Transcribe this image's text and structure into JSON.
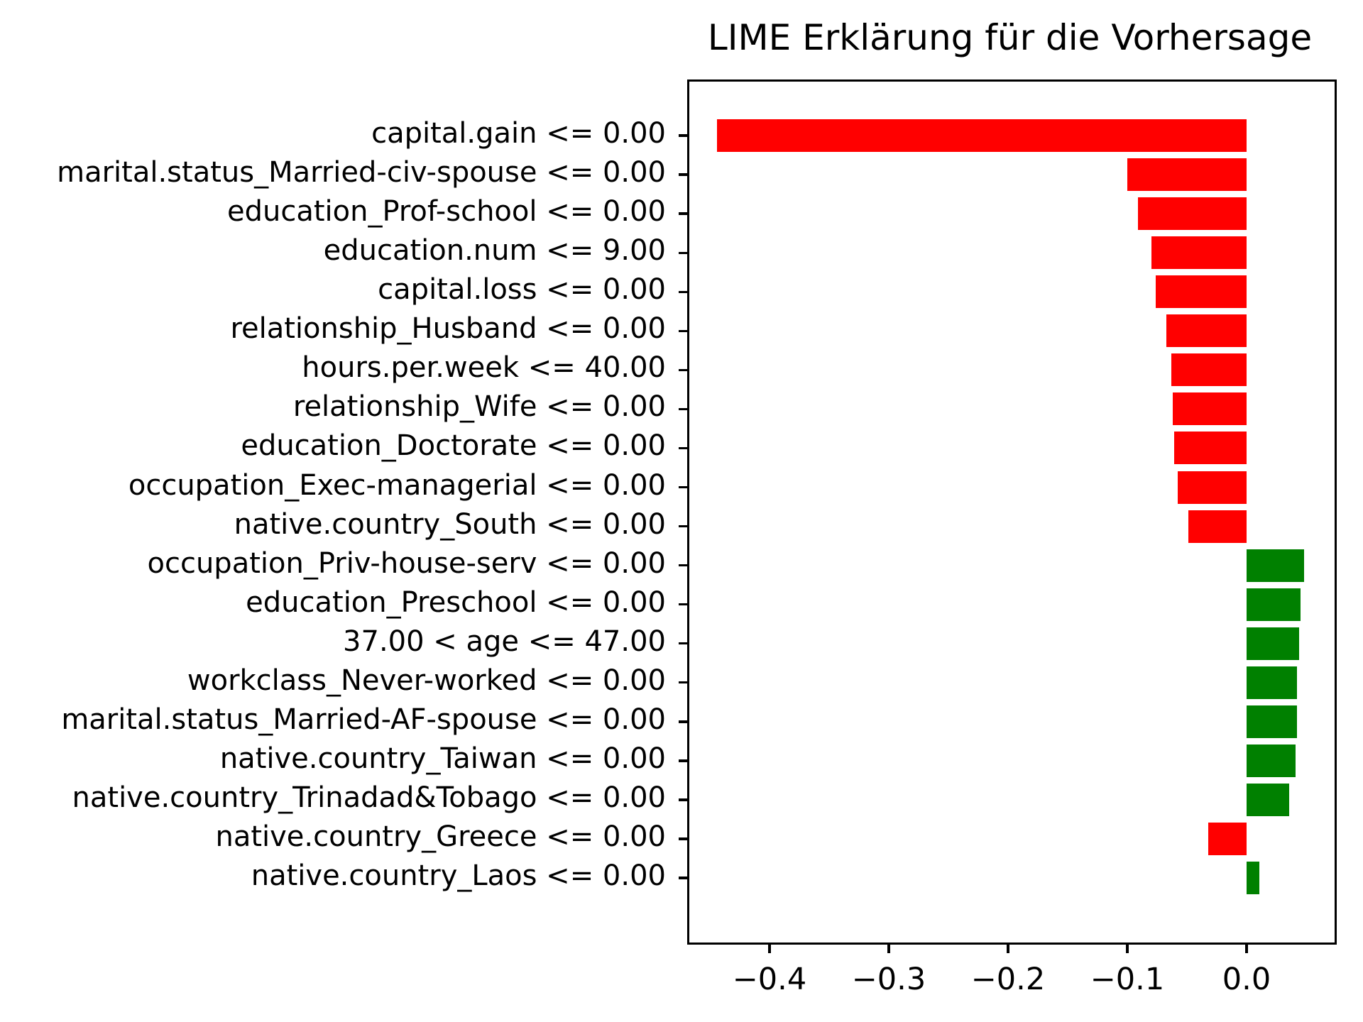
{
  "chart_data": {
    "type": "bar",
    "orientation": "horizontal",
    "title": "LIME Erklärung für die Vorhersage",
    "categories": [
      "capital.gain <= 0.00",
      "marital.status_Married-civ-spouse <= 0.00",
      "education_Prof-school <= 0.00",
      "education.num <= 9.00",
      "capital.loss <= 0.00",
      "relationship_Husband <= 0.00",
      "hours.per.week <= 40.00",
      "relationship_Wife <= 0.00",
      "education_Doctorate <= 0.00",
      "occupation_Exec-managerial <= 0.00",
      "native.country_South <= 0.00",
      "occupation_Priv-house-serv <= 0.00",
      "education_Preschool <= 0.00",
      "37.00 < age <= 47.00",
      "workclass_Never-worked <= 0.00",
      "marital.status_Married-AF-spouse <= 0.00",
      "native.country_Taiwan <= 0.00",
      "native.country_Trinadad&Tobago <= 0.00",
      "native.country_Greece <= 0.00",
      "native.country_Laos <= 0.00"
    ],
    "values": [
      -0.444,
      -0.1,
      -0.091,
      -0.08,
      -0.076,
      -0.067,
      -0.063,
      -0.062,
      -0.061,
      -0.058,
      -0.049,
      0.048,
      0.045,
      0.044,
      0.042,
      0.042,
      0.041,
      0.036,
      -0.032,
      0.011
    ],
    "xlabel": "",
    "ylabel": "",
    "xlim": [
      -0.467,
      0.074
    ],
    "xticks": [
      -0.4,
      -0.3,
      -0.2,
      -0.1,
      0.0
    ],
    "xtick_labels": [
      "−0.4",
      "−0.3",
      "−0.2",
      "−0.1",
      "0.0"
    ],
    "grid": false,
    "legend": false,
    "colors": {
      "negative": "#ff0000",
      "positive": "#008000",
      "text": "#000000",
      "axis": "#000000",
      "background": "#ffffff"
    }
  }
}
